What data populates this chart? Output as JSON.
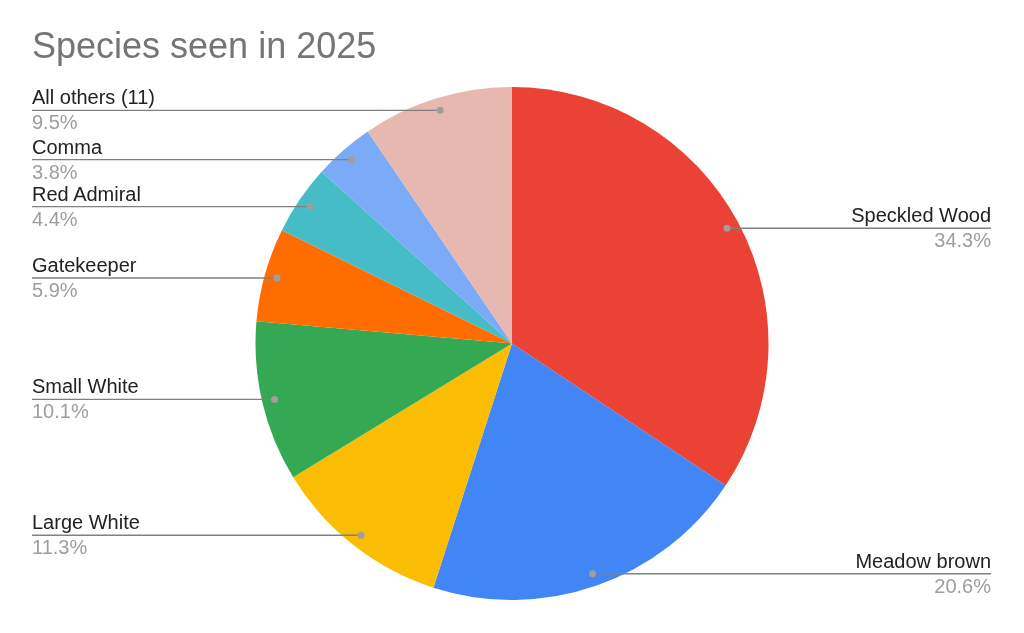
{
  "chart_data": {
    "type": "pie",
    "title": "Species seen in 2025",
    "categories": [
      "Speckled Wood",
      "Meadow brown",
      "Large White",
      "Small White",
      "Gatekeeper",
      "Red Admiral",
      "Comma",
      "All others (11)"
    ],
    "values": [
      34.3,
      20.6,
      11.3,
      10.1,
      5.9,
      4.4,
      3.8,
      9.5
    ],
    "colors": [
      "#ea4335",
      "#4285f4",
      "#fbbc04",
      "#34a853",
      "#ff6d01",
      "#46bdc6",
      "#7baaf7",
      "#e6b8af"
    ],
    "value_labels": [
      "34.3%",
      "20.6%",
      "11.3%",
      "10.1%",
      "5.9%",
      "4.4%",
      "3.8%",
      "9.5%"
    ]
  }
}
